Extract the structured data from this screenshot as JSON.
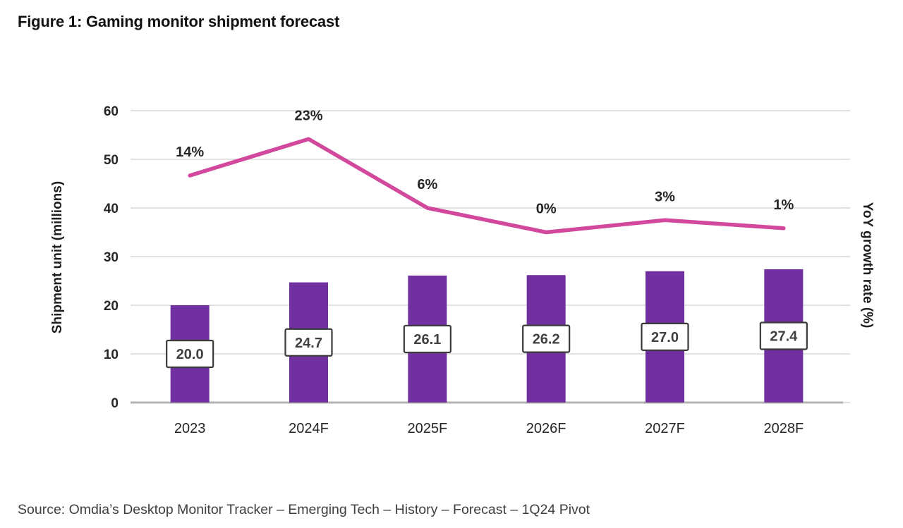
{
  "title": "Figure 1: Gaming monitor shipment forecast",
  "source": "Source: Omdia’s Desktop Monitor Tracker – Emerging Tech – History – Forecast – 1Q24 Pivot",
  "chart_data": {
    "type": "bar+line combo",
    "categories": [
      "2023",
      "2024F",
      "2025F",
      "2026F",
      "2027F",
      "2028F"
    ],
    "series": [
      {
        "name": "Shipment unit",
        "type": "bar",
        "axis": "left",
        "values": [
          20.0,
          24.7,
          26.1,
          26.2,
          27.0,
          27.4
        ],
        "labels": [
          "20.0",
          "24.7",
          "26.1",
          "26.2",
          "27.0",
          "27.4"
        ],
        "color": "#7030a0"
      },
      {
        "name": "YoY growth rate",
        "type": "line",
        "axis": "right",
        "values": [
          14,
          23,
          6,
          0,
          3,
          1
        ],
        "labels": [
          "14%",
          "23%",
          "6%",
          "0%",
          "3%",
          "1%"
        ],
        "color": "#d2489c"
      }
    ],
    "xlabel": "",
    "ylabel_left": "Shipment unit (millions)",
    "ylabel_right": "YoY growth rate (%)",
    "ylim_left": [
      0,
      60
    ],
    "yticks_left": [
      0,
      10,
      20,
      30,
      40,
      50,
      60
    ],
    "ylim_right": [
      -42,
      30
    ],
    "grid": true,
    "legend": "none",
    "colors": {
      "bar": "#7030a0",
      "line": "#d2489c",
      "gridline": "#d9d9d9",
      "axis_line": "#b3b3b3",
      "tick_text": "#262626",
      "value_box_border": "#3a3a3a",
      "value_box_fill": "#ffffff",
      "value_text": "#404040",
      "source_text": "#3f3f3f",
      "title_text": "#111111"
    }
  }
}
